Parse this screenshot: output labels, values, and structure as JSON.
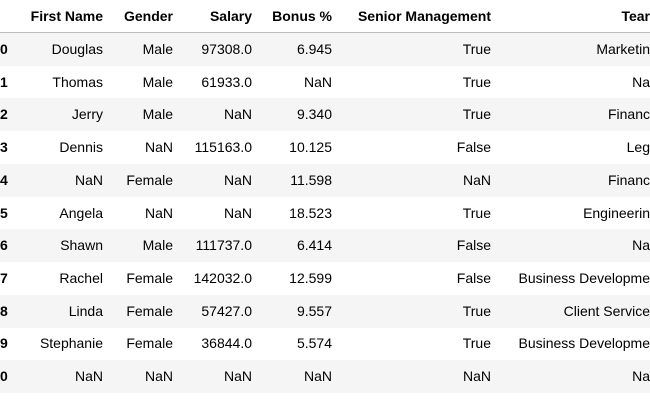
{
  "table": {
    "columns": [
      "First Name",
      "Gender",
      "Salary",
      "Bonus %",
      "Senior Management",
      "Tear"
    ],
    "rows": [
      {
        "index": "0",
        "cells": [
          "Douglas",
          "Male",
          "97308.0",
          "6.945",
          "True",
          "Marketin"
        ]
      },
      {
        "index": "1",
        "cells": [
          "Thomas",
          "Male",
          "61933.0",
          "NaN",
          "True",
          "Na"
        ]
      },
      {
        "index": "2",
        "cells": [
          "Jerry",
          "Male",
          "NaN",
          "9.340",
          "True",
          "Financ"
        ]
      },
      {
        "index": "3",
        "cells": [
          "Dennis",
          "NaN",
          "115163.0",
          "10.125",
          "False",
          "Leg"
        ]
      },
      {
        "index": "4",
        "cells": [
          "NaN",
          "Female",
          "NaN",
          "11.598",
          "NaN",
          "Financ"
        ]
      },
      {
        "index": "5",
        "cells": [
          "Angela",
          "NaN",
          "NaN",
          "18.523",
          "True",
          "Engineerin"
        ]
      },
      {
        "index": "6",
        "cells": [
          "Shawn",
          "Male",
          "111737.0",
          "6.414",
          "False",
          "Na"
        ]
      },
      {
        "index": "7",
        "cells": [
          "Rachel",
          "Female",
          "142032.0",
          "12.599",
          "False",
          "Business Developme"
        ]
      },
      {
        "index": "8",
        "cells": [
          "Linda",
          "Female",
          "57427.0",
          "9.557",
          "True",
          "Client Service"
        ]
      },
      {
        "index": "9",
        "cells": [
          "Stephanie",
          "Female",
          "36844.0",
          "5.574",
          "True",
          "Business Developme"
        ]
      },
      {
        "index": "0",
        "cells": [
          "NaN",
          "NaN",
          "NaN",
          "NaN",
          "NaN",
          "Na"
        ]
      }
    ]
  }
}
